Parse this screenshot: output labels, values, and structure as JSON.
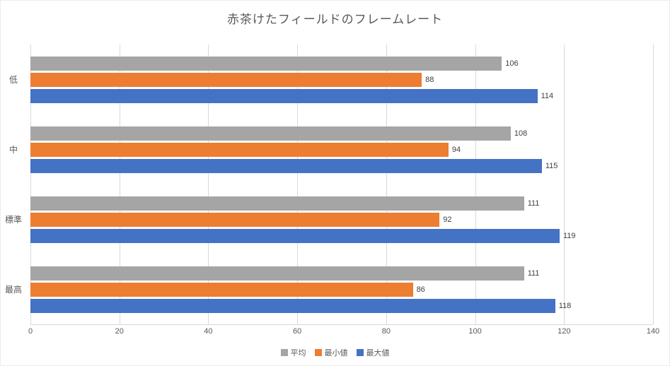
{
  "chart_data": {
    "type": "bar",
    "orientation": "horizontal",
    "title": "赤茶けたフィールドのフレームレート",
    "categories": [
      "低",
      "中",
      "標準",
      "最高"
    ],
    "series": [
      {
        "name": "平均",
        "color": "#a5a5a5",
        "values": [
          106,
          108,
          111,
          111
        ]
      },
      {
        "name": "最小値",
        "color": "#ed7d31",
        "values": [
          88,
          94,
          92,
          86
        ]
      },
      {
        "name": "最大値",
        "color": "#4472c4",
        "values": [
          114,
          115,
          119,
          118
        ]
      }
    ],
    "xlabel": "",
    "ylabel": "",
    "x_axis": {
      "min": 0,
      "max": 140,
      "tick_interval": 20,
      "ticks": [
        0,
        20,
        40,
        60,
        80,
        100,
        120,
        140
      ]
    },
    "grid": true,
    "legend_position": "bottom",
    "value_labels": true
  },
  "style_colors": {
    "gridline": "#d9d9d9",
    "axis_text": "#595959",
    "title_text": "#595959",
    "value_label_text": "#404040",
    "background": "#ffffff"
  }
}
